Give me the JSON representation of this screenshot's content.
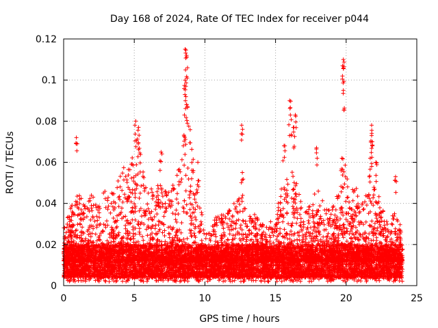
{
  "chart_data": {
    "type": "scatter",
    "title": "Day 168 of 2024, Rate Of TEC Index for receiver p044",
    "xlabel": "GPS time / hours",
    "ylabel": "ROTI / TECUs",
    "xlim": [
      0,
      25
    ],
    "ylim": [
      0,
      0.12
    ],
    "x_ticks": [
      "0",
      "5",
      "10",
      "15",
      "20",
      "25"
    ],
    "y_ticks": [
      "0",
      "0.02",
      "0.04",
      "0.06",
      "0.08",
      "0.1",
      "0.12"
    ],
    "grid": true,
    "marker": "+",
    "color": "#ff0000",
    "x_data_extent": [
      0,
      24
    ],
    "baseline_range": [
      0.004,
      0.02
    ],
    "envelope": [
      [
        0.0,
        0.028
      ],
      [
        0.5,
        0.038
      ],
      [
        1.0,
        0.045
      ],
      [
        1.5,
        0.04
      ],
      [
        2.0,
        0.045
      ],
      [
        2.5,
        0.04
      ],
      [
        3.0,
        0.048
      ],
      [
        3.5,
        0.045
      ],
      [
        4.0,
        0.055
      ],
      [
        4.5,
        0.06
      ],
      [
        5.0,
        0.065
      ],
      [
        5.3,
        0.075
      ],
      [
        5.6,
        0.06
      ],
      [
        6.0,
        0.045
      ],
      [
        6.5,
        0.05
      ],
      [
        7.0,
        0.05
      ],
      [
        7.5,
        0.045
      ],
      [
        8.0,
        0.055
      ],
      [
        8.5,
        0.07
      ],
      [
        8.8,
        0.09
      ],
      [
        9.2,
        0.06
      ],
      [
        9.6,
        0.04
      ],
      [
        10.0,
        0.03
      ],
      [
        10.5,
        0.032
      ],
      [
        11.0,
        0.035
      ],
      [
        11.5,
        0.035
      ],
      [
        12.0,
        0.04
      ],
      [
        12.5,
        0.045
      ],
      [
        13.0,
        0.035
      ],
      [
        13.5,
        0.035
      ],
      [
        14.0,
        0.03
      ],
      [
        14.5,
        0.03
      ],
      [
        15.0,
        0.035
      ],
      [
        15.5,
        0.05
      ],
      [
        16.0,
        0.06
      ],
      [
        16.5,
        0.05
      ],
      [
        17.0,
        0.035
      ],
      [
        17.5,
        0.04
      ],
      [
        18.0,
        0.05
      ],
      [
        18.5,
        0.04
      ],
      [
        19.0,
        0.04
      ],
      [
        19.5,
        0.045
      ],
      [
        19.9,
        0.06
      ],
      [
        20.3,
        0.045
      ],
      [
        20.7,
        0.05
      ],
      [
        21.0,
        0.04
      ],
      [
        21.5,
        0.045
      ],
      [
        22.0,
        0.05
      ],
      [
        22.5,
        0.04
      ],
      [
        23.0,
        0.03
      ],
      [
        23.5,
        0.045
      ],
      [
        24.0,
        0.025
      ]
    ],
    "outliers": [
      [
        0.9,
        0.072
      ],
      [
        5.1,
        0.08
      ],
      [
        5.3,
        0.077
      ],
      [
        6.9,
        0.065
      ],
      [
        8.6,
        0.115
      ],
      [
        8.7,
        0.112
      ],
      [
        8.6,
        0.1
      ],
      [
        8.65,
        0.097
      ],
      [
        8.7,
        0.088
      ],
      [
        8.55,
        0.083
      ],
      [
        9.5,
        0.06
      ],
      [
        12.6,
        0.078
      ],
      [
        12.65,
        0.055
      ],
      [
        15.6,
        0.068
      ],
      [
        16.0,
        0.09
      ],
      [
        16.05,
        0.083
      ],
      [
        16.4,
        0.083
      ],
      [
        16.3,
        0.077
      ],
      [
        17.9,
        0.067
      ],
      [
        19.8,
        0.11
      ],
      [
        19.75,
        0.107
      ],
      [
        19.8,
        0.095
      ],
      [
        19.7,
        0.062
      ],
      [
        21.8,
        0.078
      ],
      [
        21.8,
        0.073
      ],
      [
        21.85,
        0.07
      ],
      [
        21.7,
        0.062
      ],
      [
        22.1,
        0.06
      ],
      [
        23.5,
        0.053
      ]
    ]
  }
}
